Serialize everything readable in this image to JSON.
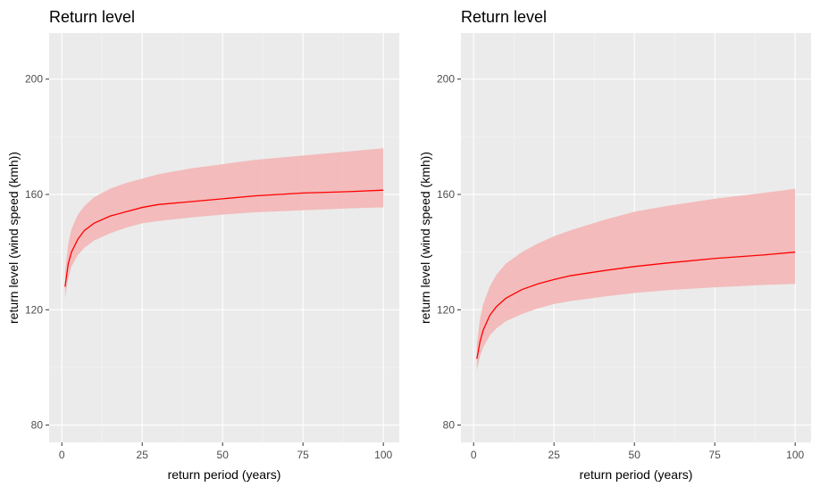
{
  "colors": {
    "panel_background": "#ebebeb",
    "grid": "#ffffff",
    "line": "#ff0000",
    "ribbon": "#f4b6b6"
  },
  "chart_data": [
    {
      "type": "line",
      "title": "Return level",
      "xlabel": "return period (years)",
      "ylabel": "return level (wind speed (kmh))",
      "xlim": [
        -3.95,
        104.95
      ],
      "ylim": [
        74,
        216
      ],
      "xticks": [
        0,
        25,
        50,
        75,
        100
      ],
      "yticks": [
        80,
        120,
        160,
        200
      ],
      "x_tick_labels": [
        "0",
        "25",
        "50",
        "75",
        "100"
      ],
      "y_tick_labels": [
        "80",
        "120",
        "160",
        "200"
      ],
      "grid": true,
      "legend": "none",
      "x": [
        1,
        2,
        3,
        5,
        7,
        10,
        15,
        20,
        25,
        30,
        40,
        50,
        60,
        75,
        90,
        100
      ],
      "series": [
        {
          "role": "estimate",
          "values": [
            128,
            136,
            140,
            144.5,
            147.5,
            150,
            152.5,
            154,
            155.5,
            156.5,
            157.5,
            158.5,
            159.5,
            160.5,
            161,
            161.5
          ]
        },
        {
          "role": "upper",
          "values": [
            133,
            143,
            148,
            153,
            156,
            159,
            162,
            164,
            165.5,
            167,
            169,
            170.5,
            172,
            173.5,
            175,
            176
          ]
        },
        {
          "role": "lower",
          "values": [
            124,
            131,
            135,
            139,
            141.5,
            144,
            146.5,
            148.5,
            150,
            150.8,
            152,
            153,
            153.8,
            154.5,
            155.2,
            155.5
          ]
        }
      ]
    },
    {
      "type": "line",
      "title": "Return level",
      "xlabel": "return period (years)",
      "ylabel": "return level (wind speed (kmh))",
      "xlim": [
        -3.95,
        104.95
      ],
      "ylim": [
        74,
        216
      ],
      "xticks": [
        0,
        25,
        50,
        75,
        100
      ],
      "yticks": [
        80,
        120,
        160,
        200
      ],
      "x_tick_labels": [
        "0",
        "25",
        "50",
        "75",
        "100"
      ],
      "y_tick_labels": [
        "80",
        "120",
        "160",
        "200"
      ],
      "grid": true,
      "legend": "none",
      "x": [
        1,
        2,
        3,
        5,
        7,
        10,
        15,
        20,
        25,
        30,
        40,
        50,
        60,
        75,
        90,
        100
      ],
      "series": [
        {
          "role": "estimate",
          "values": [
            103,
            109,
            113,
            118,
            121,
            124,
            127,
            129,
            130.5,
            131.8,
            133.5,
            135,
            136.2,
            137.8,
            139,
            140
          ]
        },
        {
          "role": "upper",
          "values": [
            108,
            117,
            122,
            128,
            132,
            136,
            140,
            143,
            145.5,
            147.5,
            151,
            154,
            156,
            158.5,
            160.5,
            162
          ]
        },
        {
          "role": "lower",
          "values": [
            99,
            104,
            107,
            111,
            113.5,
            116,
            118.5,
            120.5,
            122,
            123,
            124.5,
            125.8,
            126.8,
            127.8,
            128.6,
            129
          ]
        }
      ]
    }
  ]
}
